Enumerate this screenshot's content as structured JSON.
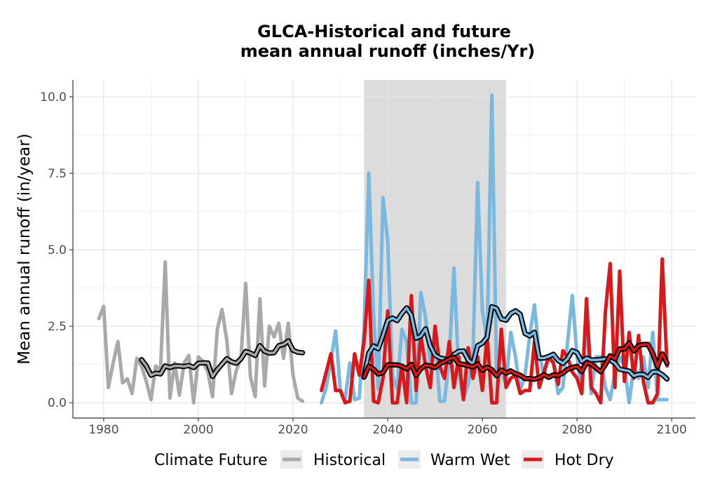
{
  "chart_data": {
    "type": "line",
    "title_line1": "GLCA-Historical and future",
    "title_line2": "mean annual runoff (inches/Yr)",
    "xlabel": "",
    "ylabel": "Mean annual runoff (in/year)",
    "xlim": [
      1973.5,
      2105
    ],
    "ylim": [
      -0.5,
      10.55
    ],
    "x_ticks": [
      1980,
      2000,
      2020,
      2040,
      2060,
      2080,
      2100
    ],
    "y_ticks": [
      0.0,
      2.5,
      5.0,
      7.5,
      10.0
    ],
    "y_tick_labels": [
      "0.0",
      "2.5",
      "5.0",
      "7.5",
      "10.0"
    ],
    "grid": true,
    "shaded_period": [
      2035,
      2065
    ],
    "legend": {
      "position": "bottom",
      "title": "Climate Future",
      "entries": [
        "Historical",
        "Warm Wet",
        "Hot Dry"
      ]
    },
    "colors": {
      "Historical": "#a9a9a9",
      "Warm Wet": "#7ab8e0",
      "Hot Dry": "#d7191c",
      "rolling_mean_outline": "#000000",
      "shading": "#dcdcdc",
      "grid": "#e3e3e3"
    },
    "series": [
      {
        "name": "Historical",
        "x": [
          1979,
          1980,
          1981,
          1982,
          1983,
          1984,
          1985,
          1986,
          1987,
          1988,
          1989,
          1990,
          1991,
          1992,
          1993,
          1994,
          1995,
          1996,
          1997,
          1998,
          1999,
          2000,
          2001,
          2002,
          2003,
          2004,
          2005,
          2006,
          2007,
          2008,
          2009,
          2010,
          2011,
          2012,
          2013,
          2014,
          2015,
          2016,
          2017,
          2018,
          2019,
          2020,
          2021,
          2022
        ],
        "values": [
          2.75,
          3.15,
          0.5,
          1.3,
          2.0,
          0.65,
          0.78,
          0.3,
          1.45,
          1.2,
          0.7,
          0.1,
          1.2,
          1.05,
          4.6,
          0.15,
          1.3,
          0.25,
          1.3,
          1.55,
          0.0,
          1.5,
          1.35,
          1.0,
          0.2,
          2.4,
          3.05,
          2.05,
          0.3,
          1.05,
          1.45,
          3.9,
          0.85,
          0.2,
          3.4,
          0.55,
          2.5,
          2.15,
          2.6,
          1.45,
          2.6,
          0.9,
          0.15,
          0.05
        ]
      },
      {
        "name": "Warm Wet",
        "x": [
          2026,
          2027,
          2028,
          2029,
          2030,
          2031,
          2032,
          2033,
          2034,
          2035,
          2036,
          2037,
          2038,
          2039,
          2040,
          2041,
          2042,
          2043,
          2044,
          2045,
          2046,
          2047,
          2048,
          2049,
          2050,
          2051,
          2052,
          2053,
          2054,
          2055,
          2056,
          2057,
          2058,
          2059,
          2060,
          2061,
          2062,
          2063,
          2064,
          2065,
          2066,
          2067,
          2068,
          2069,
          2070,
          2071,
          2072,
          2073,
          2074,
          2075,
          2076,
          2077,
          2078,
          2079,
          2080,
          2081,
          2082,
          2083,
          2084,
          2085,
          2086,
          2087,
          2088,
          2089,
          2090,
          2091,
          2092,
          2093,
          2094,
          2095,
          2096,
          2097,
          2098,
          2099
        ],
        "values": [
          0.0,
          0.5,
          1.4,
          2.35,
          0.4,
          0.1,
          1.3,
          0.1,
          0.15,
          2.4,
          7.5,
          2.9,
          0.45,
          6.7,
          5.3,
          0.9,
          0.45,
          2.4,
          2.0,
          0.0,
          0.0,
          3.6,
          2.8,
          1.2,
          2.2,
          0.05,
          0.05,
          1.5,
          4.4,
          1.0,
          0.15,
          0.6,
          1.5,
          7.2,
          3.0,
          2.0,
          10.05,
          0.9,
          1.0,
          0.6,
          2.3,
          1.5,
          0.4,
          0.9,
          2.2,
          3.2,
          1.6,
          0.9,
          1.5,
          1.35,
          0.3,
          0.5,
          2.0,
          3.5,
          1.5,
          0.3,
          2.75,
          0.3,
          1.5,
          1.5,
          0.5,
          0.1,
          1.0,
          1.5,
          1.2,
          0.0,
          1.2,
          0.8,
          1.5,
          0.5,
          2.3,
          0.1,
          0.1,
          0.1
        ]
      },
      {
        "name": "Hot Dry",
        "x": [
          2026,
          2027,
          2028,
          2029,
          2030,
          2031,
          2032,
          2033,
          2034,
          2035,
          2036,
          2037,
          2038,
          2039,
          2040,
          2041,
          2042,
          2043,
          2044,
          2045,
          2046,
          2047,
          2048,
          2049,
          2050,
          2051,
          2052,
          2053,
          2054,
          2055,
          2056,
          2057,
          2058,
          2059,
          2060,
          2061,
          2062,
          2063,
          2064,
          2065,
          2066,
          2067,
          2068,
          2069,
          2070,
          2071,
          2072,
          2073,
          2074,
          2075,
          2076,
          2077,
          2078,
          2079,
          2080,
          2081,
          2082,
          2083,
          2084,
          2085,
          2086,
          2087,
          2088,
          2089,
          2090,
          2091,
          2092,
          2093,
          2094,
          2095,
          2096,
          2097,
          2098,
          2099
        ],
        "values": [
          0.4,
          1.0,
          1.6,
          0.4,
          0.4,
          0.0,
          0.05,
          1.6,
          0.9,
          2.0,
          4.0,
          0.05,
          0.0,
          0.8,
          3.0,
          0.0,
          0.0,
          1.2,
          0.0,
          3.5,
          0.4,
          2.2,
          1.2,
          0.5,
          2.5,
          1.2,
          0.8,
          2.0,
          0.5,
          1.5,
          0.1,
          1.8,
          0.8,
          1.5,
          0.4,
          2.2,
          0.0,
          0.0,
          2.4,
          0.5,
          0.8,
          0.9,
          0.3,
          0.4,
          0.4,
          2.0,
          0.5,
          1.0,
          1.5,
          1.3,
          0.6,
          1.7,
          1.5,
          1.0,
          0.8,
          0.3,
          3.4,
          0.5,
          0.3,
          0.0,
          3.0,
          4.55,
          0.5,
          4.3,
          0.7,
          2.3,
          0.8,
          2.2,
          0.7,
          0.0,
          0.0,
          0.3,
          4.7,
          1.2
        ]
      }
    ]
  }
}
